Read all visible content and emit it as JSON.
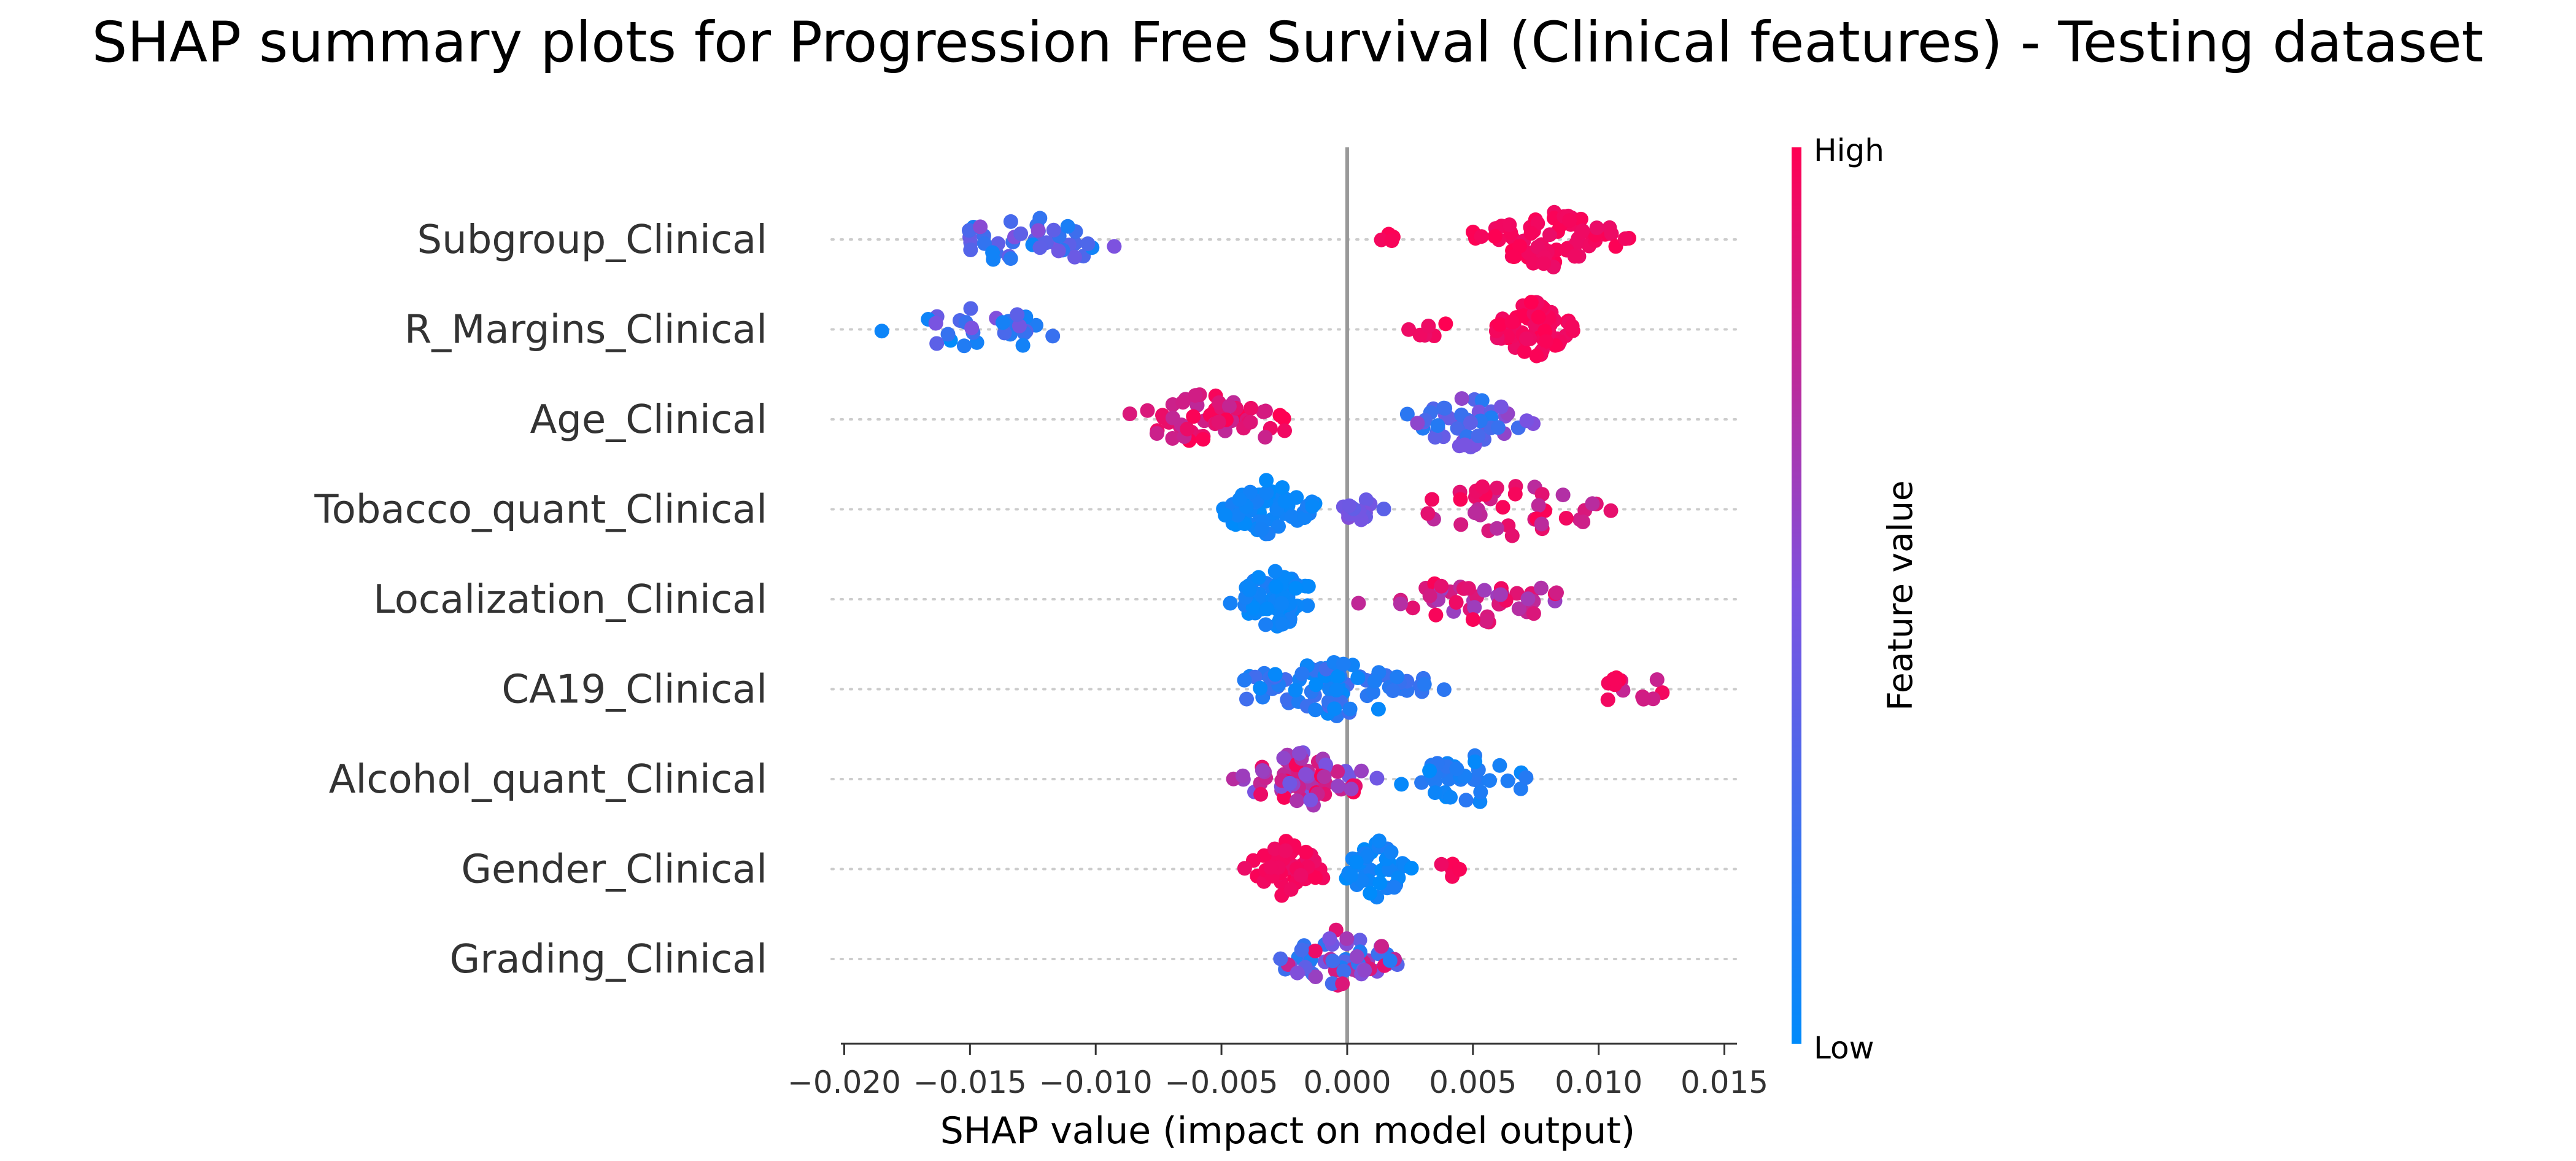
{
  "chart_data": {
    "type": "scatter",
    "subtype": "shap-beeswarm",
    "title": "SHAP summary plots for Progression Free Survival (Clinical features) - Testing dataset",
    "xlabel": "SHAP value (impact on model output)",
    "xlim": [
      -0.0205,
      0.0155
    ],
    "xticks": [
      -0.02,
      -0.015,
      -0.01,
      -0.005,
      0.0,
      0.005,
      0.01,
      0.015
    ],
    "xtick_labels": [
      "−0.020",
      "−0.015",
      "−0.010",
      "−0.005",
      "0.000",
      "0.005",
      "0.010",
      "0.015"
    ],
    "colorbar": {
      "label": "Feature value",
      "high_label": "High",
      "low_label": "Low",
      "low_color": "#008bfb",
      "mid_color": "#7c52e0",
      "high_color": "#ff0052"
    },
    "axis_color": "#333333",
    "zero_line_color": "#999999",
    "features": [
      {
        "name": "Subgroup_Clinical",
        "clusters": [
          {
            "range": [
              -0.0168,
              -0.0085
            ],
            "n": 40,
            "fv": [
              0.05,
              0.55
            ]
          },
          {
            "range": [
              0.0012,
              0.0022
            ],
            "n": 4,
            "fv": [
              0.95,
              1.0
            ]
          },
          {
            "range": [
              0.0045,
              0.0115
            ],
            "n": 70,
            "fv": [
              0.92,
              1.0
            ]
          }
        ]
      },
      {
        "name": "R_Margins_Clinical",
        "clusters": [
          {
            "range": [
              -0.0188,
              -0.01
            ],
            "n": 30,
            "fv": [
              0.0,
              0.55
            ]
          },
          {
            "range": [
              0.002,
              0.0042
            ],
            "n": 6,
            "fv": [
              0.92,
              1.0
            ]
          },
          {
            "range": [
              0.0055,
              0.0093
            ],
            "n": 70,
            "fv": [
              0.92,
              1.0
            ]
          }
        ]
      },
      {
        "name": "Age_Clinical",
        "clusters": [
          {
            "range": [
              -0.0095,
              -0.001
            ],
            "n": 55,
            "fv": [
              0.75,
              1.0
            ]
          },
          {
            "range": [
              0.002,
              0.0075
            ],
            "n": 50,
            "fv": [
              0.1,
              0.6
            ]
          }
        ]
      },
      {
        "name": "Tobacco_quant_Clinical",
        "clusters": [
          {
            "range": [
              -0.0055,
              -0.001
            ],
            "n": 55,
            "fv": [
              0.0,
              0.12
            ]
          },
          {
            "range": [
              -0.0008,
              0.002
            ],
            "n": 14,
            "fv": [
              0.35,
              0.6
            ]
          },
          {
            "range": [
              0.002,
              0.0108
            ],
            "n": 40,
            "fv": [
              0.7,
              1.0
            ]
          }
        ]
      },
      {
        "name": "Localization_Clinical",
        "clusters": [
          {
            "range": [
              -0.005,
              -0.0008
            ],
            "n": 60,
            "fv": [
              0.0,
              0.12
            ]
          },
          {
            "range": [
              0.0003,
              0.0006
            ],
            "n": 1,
            "fv": [
              0.7,
              0.8
            ]
          },
          {
            "range": [
              0.002,
              0.0087
            ],
            "n": 45,
            "fv": [
              0.6,
              1.0
            ]
          }
        ]
      },
      {
        "name": "CA19_Clinical",
        "clusters": [
          {
            "range": [
              -0.0055,
              0.0043
            ],
            "n": 95,
            "fv": [
              0.0,
              0.3
            ]
          },
          {
            "range": [
              0.0083,
              0.014
            ],
            "n": 14,
            "fv": [
              0.7,
              1.0
            ]
          }
        ]
      },
      {
        "name": "Alcohol_quant_Clinical",
        "clusters": [
          {
            "range": [
              -0.0048,
              0.0013
            ],
            "n": 70,
            "fv": [
              0.45,
              1.0
            ]
          },
          {
            "range": [
              0.002,
              0.0079
            ],
            "n": 35,
            "fv": [
              0.0,
              0.2
            ]
          }
        ]
      },
      {
        "name": "Gender_Clinical",
        "clusters": [
          {
            "range": [
              -0.0043,
              -0.0005
            ],
            "n": 45,
            "fv": [
              0.92,
              1.0
            ]
          },
          {
            "range": [
              -0.0003,
              0.0027
            ],
            "n": 40,
            "fv": [
              0.0,
              0.12
            ]
          },
          {
            "range": [
              0.003,
              0.0052
            ],
            "n": 5,
            "fv": [
              0.92,
              1.0
            ]
          }
        ]
      },
      {
        "name": "Grading_Clinical",
        "clusters": [
          {
            "range": [
              -0.0032,
              0.0023
            ],
            "n": 55,
            "fv": [
              0.1,
              0.95
            ]
          }
        ]
      }
    ]
  }
}
